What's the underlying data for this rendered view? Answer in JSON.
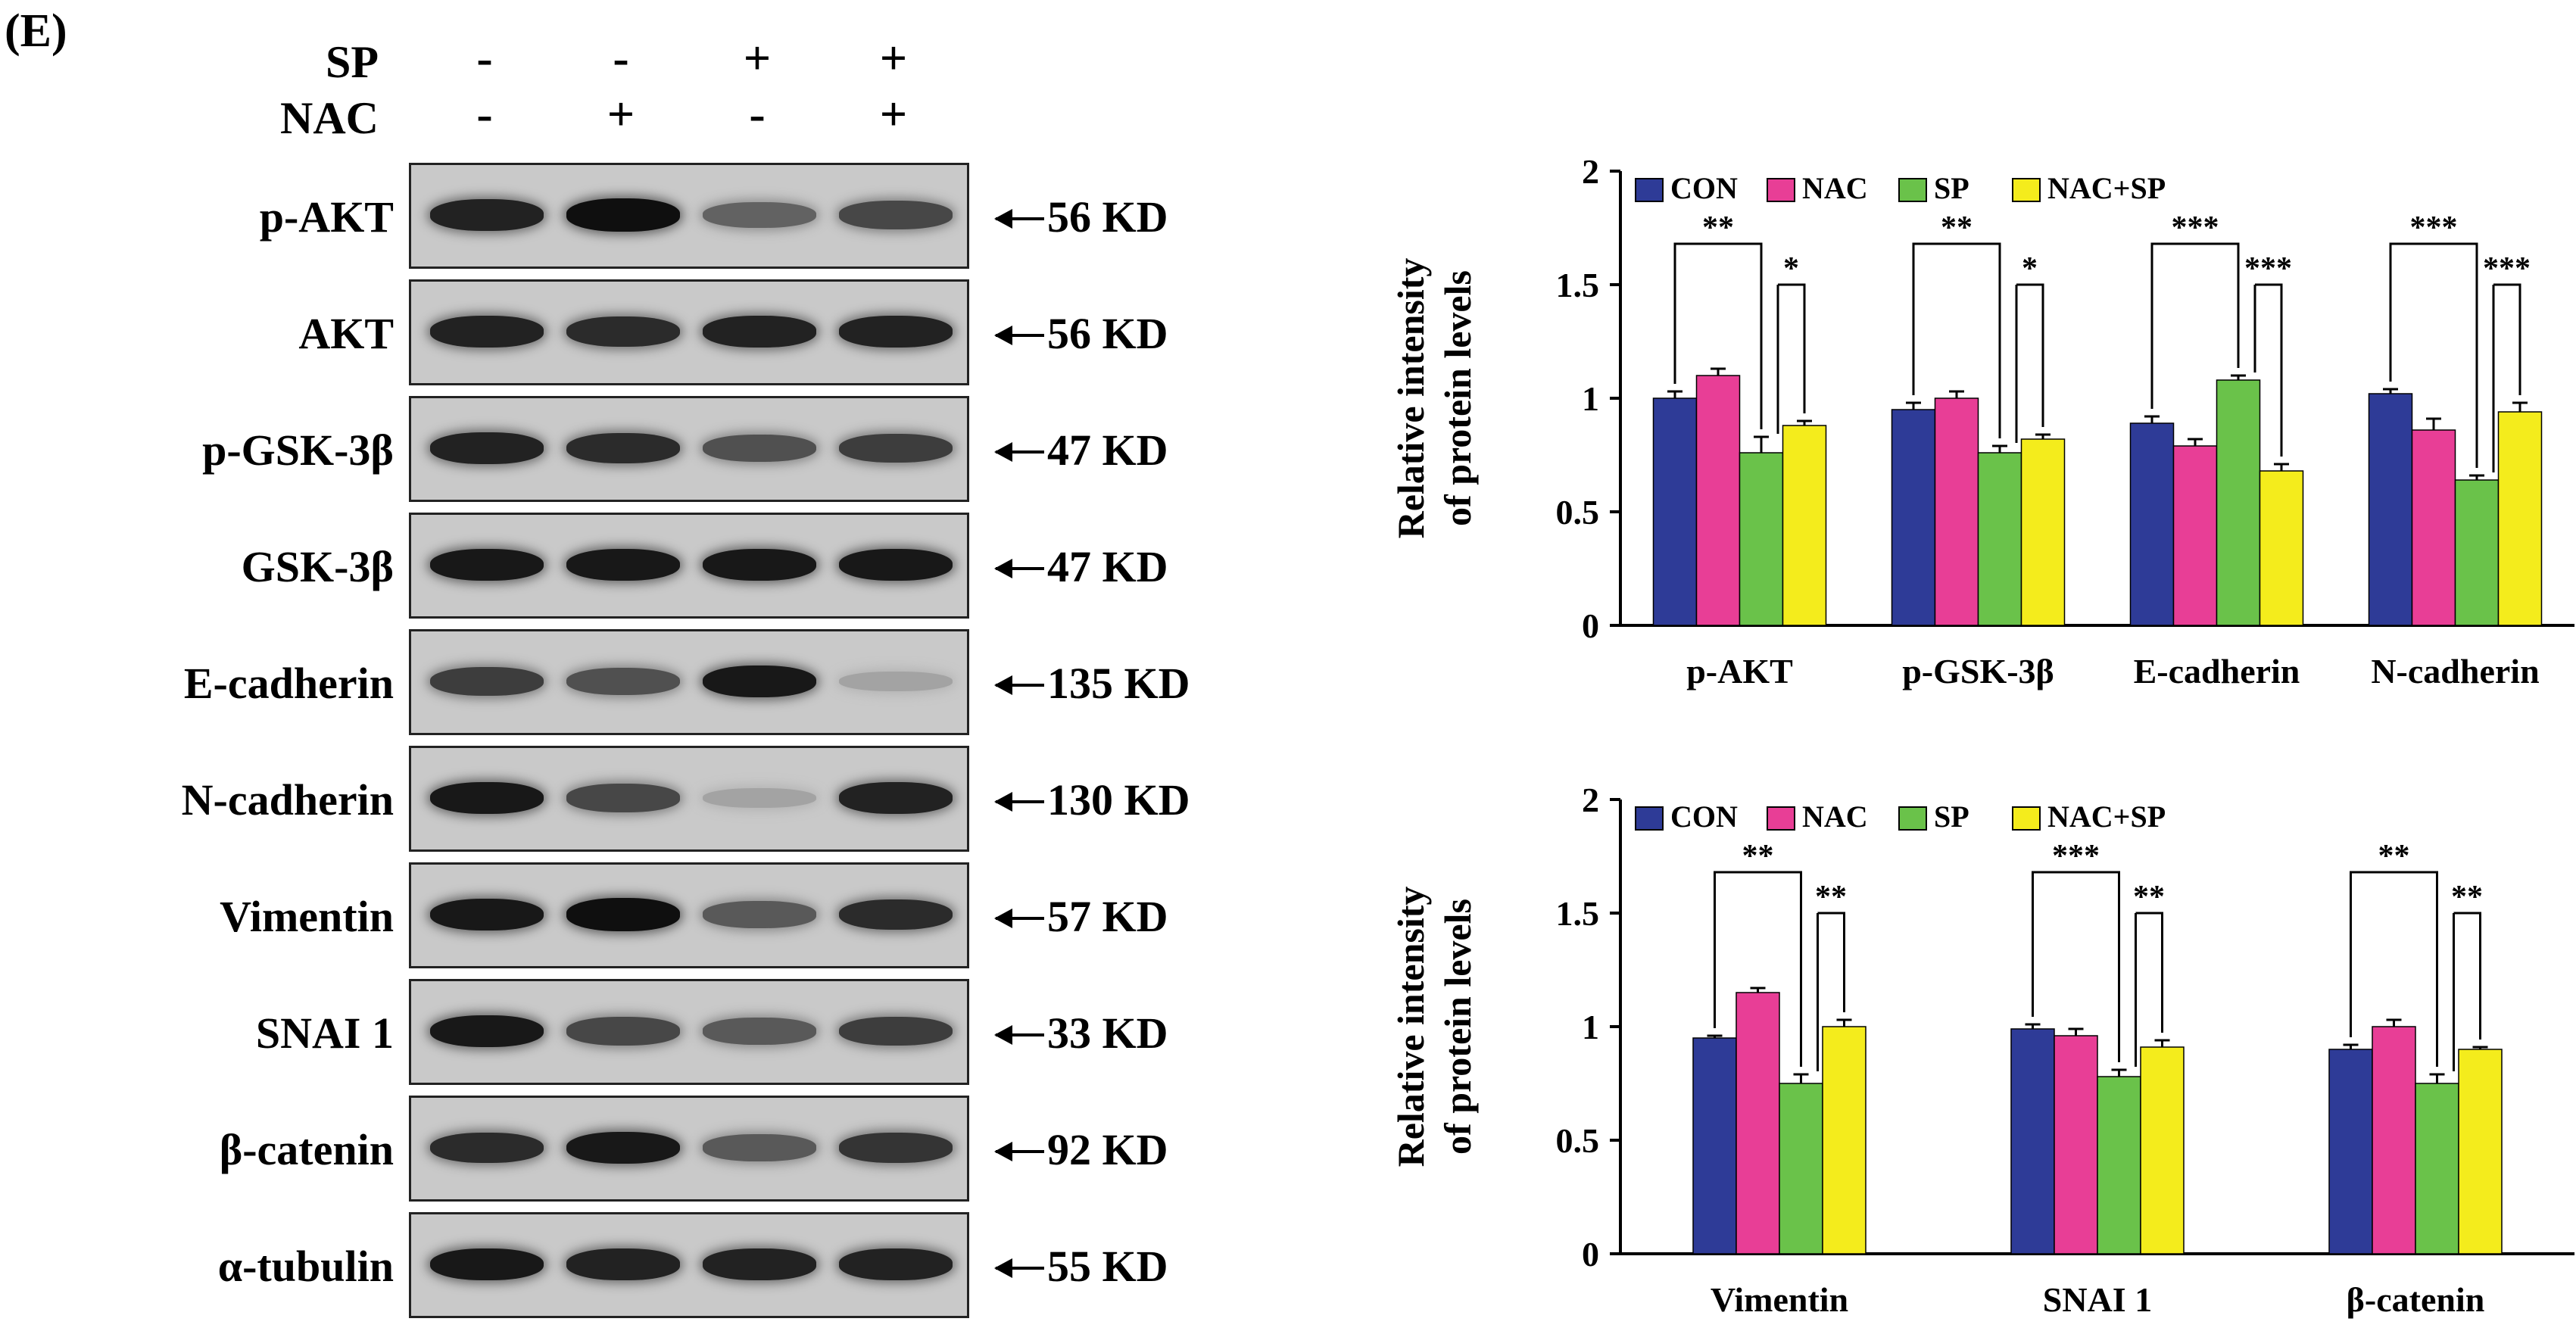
{
  "panel_label": "(E)",
  "conditions": {
    "sp_label": "SP",
    "nac_label": "NAC",
    "sp_signs": [
      "-",
      "-",
      "+",
      "+"
    ],
    "nac_signs": [
      "-",
      "+",
      "-",
      "+"
    ]
  },
  "blots": [
    {
      "label": "p-AKT",
      "kd": "56 KD",
      "bands": [
        0.9,
        1.0,
        0.55,
        0.7
      ]
    },
    {
      "label": "AKT",
      "kd": "56 KD",
      "bands": [
        0.9,
        0.85,
        0.9,
        0.9
      ]
    },
    {
      "label": "p-GSK-3β",
      "kd": "47 KD",
      "bands": [
        0.9,
        0.85,
        0.65,
        0.75
      ]
    },
    {
      "label": "GSK-3β",
      "kd": "47 KD",
      "bands": [
        0.95,
        0.95,
        0.95,
        0.95
      ]
    },
    {
      "label": "E-cadherin",
      "kd": "135 KD",
      "bands": [
        0.75,
        0.65,
        0.95,
        0.2
      ]
    },
    {
      "label": "N-cadherin",
      "kd": "130 KD",
      "bands": [
        0.95,
        0.7,
        0.2,
        0.9
      ]
    },
    {
      "label": "Vimentin",
      "kd": "57 KD",
      "bands": [
        0.95,
        1.0,
        0.6,
        0.85
      ]
    },
    {
      "label": "SNAI 1",
      "kd": "33 KD",
      "bands": [
        0.95,
        0.7,
        0.6,
        0.75
      ]
    },
    {
      "label": "β-catenin",
      "kd": "92 KD",
      "bands": [
        0.85,
        0.95,
        0.6,
        0.8
      ]
    },
    {
      "label": "α-tubulin",
      "kd": "55 KD",
      "bands": [
        0.95,
        0.9,
        0.9,
        0.9
      ]
    }
  ],
  "colors": {
    "CON": "#2e3b97",
    "NAC": "#e83e96",
    "SP": "#6ac24a",
    "NAC+SP": "#f4ec1c"
  },
  "chart_data": [
    {
      "type": "bar",
      "ylabel_line1": "Relative intensity",
      "ylabel_line2": "of protein levels",
      "ylim": [
        0,
        2
      ],
      "yticks": [
        "0",
        "0.5",
        "1",
        "1.5",
        "2"
      ],
      "legend": [
        "CON",
        "NAC",
        "SP",
        "NAC+SP"
      ],
      "categories": [
        "p-AKT",
        "p-GSK-3β",
        "E-cadherin",
        "N-cadherin"
      ],
      "series": [
        {
          "name": "CON",
          "values": [
            1.0,
            0.95,
            0.89,
            1.02
          ],
          "errors": [
            0.03,
            0.03,
            0.03,
            0.02
          ]
        },
        {
          "name": "NAC",
          "values": [
            1.1,
            1.0,
            0.79,
            0.86
          ],
          "errors": [
            0.03,
            0.03,
            0.03,
            0.05
          ]
        },
        {
          "name": "SP",
          "values": [
            0.76,
            0.76,
            1.08,
            0.64
          ],
          "errors": [
            0.07,
            0.03,
            0.02,
            0.02
          ]
        },
        {
          "name": "NAC+SP",
          "values": [
            0.88,
            0.82,
            0.68,
            0.94
          ],
          "errors": [
            0.02,
            0.02,
            0.03,
            0.04
          ]
        }
      ],
      "significance": [
        {
          "outer": "**",
          "inner": "*"
        },
        {
          "outer": "**",
          "inner": "*"
        },
        {
          "outer": "***",
          "inner": "***"
        },
        {
          "outer": "***",
          "inner": "***"
        }
      ]
    },
    {
      "type": "bar",
      "ylabel_line1": "Relative intensity",
      "ylabel_line2": "of protein levels",
      "ylim": [
        0,
        2
      ],
      "yticks": [
        "0",
        "0.5",
        "1",
        "1.5",
        "2"
      ],
      "legend": [
        "CON",
        "NAC",
        "SP",
        "NAC+SP"
      ],
      "categories": [
        "Vimentin",
        "SNAI 1",
        "β-catenin"
      ],
      "series": [
        {
          "name": "CON",
          "values": [
            0.95,
            0.99,
            0.9
          ],
          "errors": [
            0.01,
            0.02,
            0.02
          ]
        },
        {
          "name": "NAC",
          "values": [
            1.15,
            0.96,
            1.0
          ],
          "errors": [
            0.02,
            0.03,
            0.03
          ]
        },
        {
          "name": "SP",
          "values": [
            0.75,
            0.78,
            0.75
          ],
          "errors": [
            0.04,
            0.03,
            0.04
          ]
        },
        {
          "name": "NAC+SP",
          "values": [
            1.0,
            0.91,
            0.9
          ],
          "errors": [
            0.03,
            0.03,
            0.01
          ]
        }
      ],
      "significance": [
        {
          "outer": "**",
          "inner": "**"
        },
        {
          "outer": "***",
          "inner": "**"
        },
        {
          "outer": "**",
          "inner": "**"
        }
      ]
    }
  ]
}
